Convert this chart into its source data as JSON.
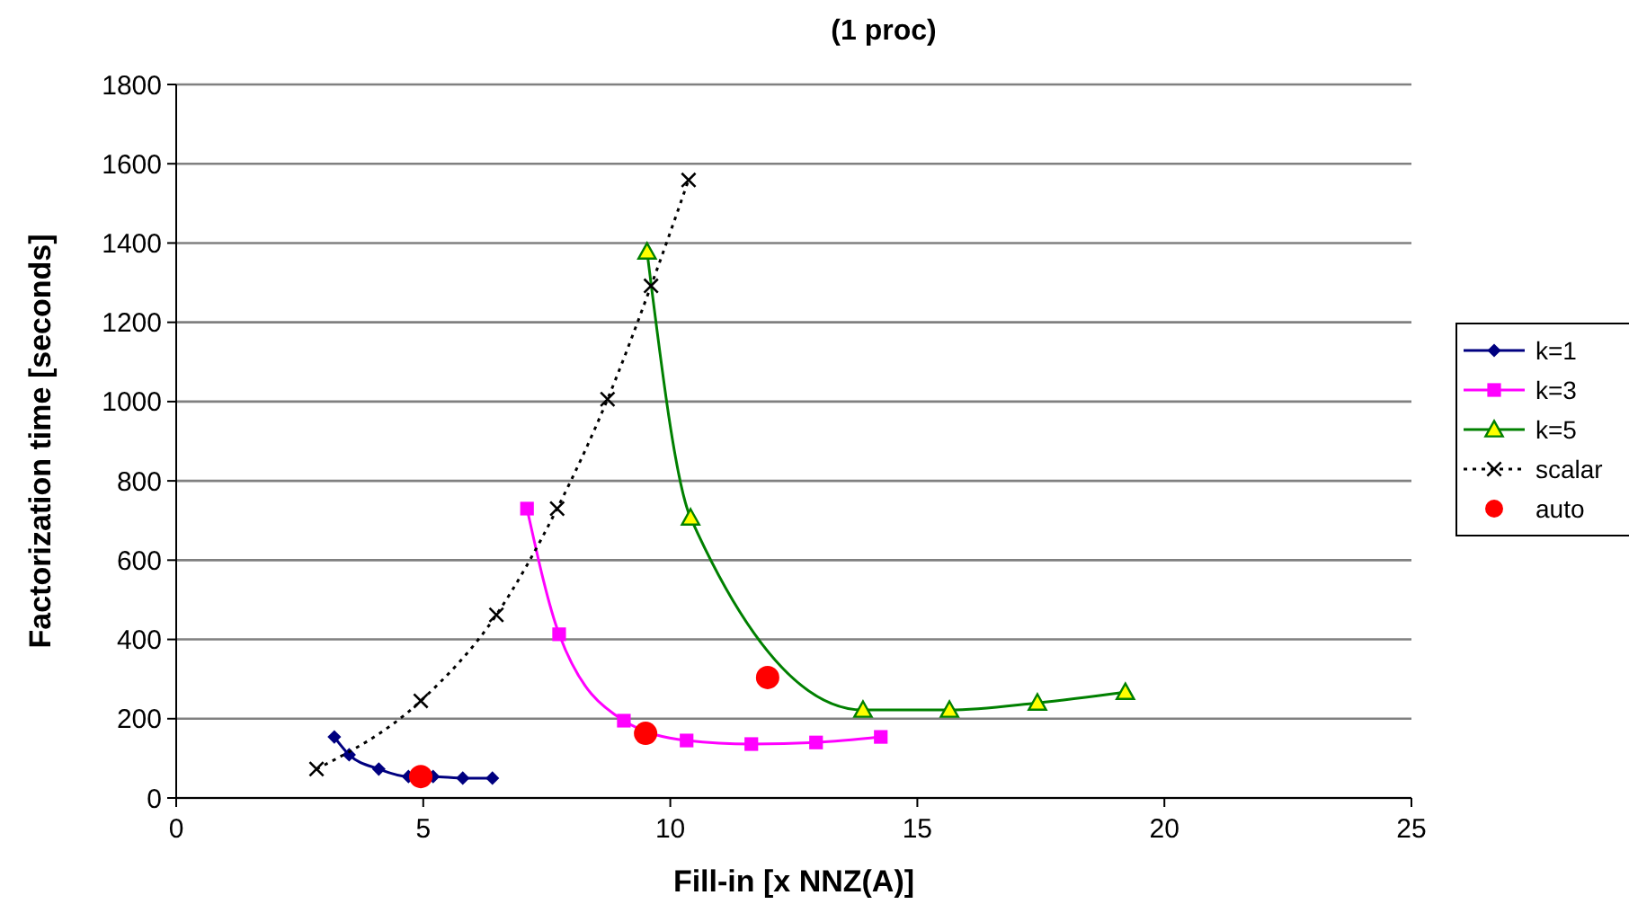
{
  "chart_data": {
    "type": "line",
    "title": "(1 proc)",
    "xlabel": "Fill-in [x NNZ(A)]",
    "ylabel": "Factorization time [seconds]",
    "xlim": [
      0,
      25
    ],
    "xticks": [
      0,
      5,
      10,
      15,
      20,
      25
    ],
    "ylim": [
      0,
      1800
    ],
    "yticks": [
      0,
      200,
      400,
      600,
      800,
      1000,
      1200,
      1400,
      1600,
      1800
    ],
    "grid": "y",
    "legend": "right",
    "series": [
      {
        "name": "k=1",
        "color": "#000080",
        "marker": "diamond",
        "line_style": "solid",
        "x": [
          3.2,
          3.5,
          4.1,
          4.7,
          5.2,
          5.8,
          6.4
        ],
        "values": [
          154,
          109,
          73,
          54,
          54,
          50,
          50
        ]
      },
      {
        "name": "k=3",
        "color": "#ff00ff",
        "marker": "square",
        "line_style": "solid",
        "x": [
          7.1,
          7.75,
          9.06,
          10.33,
          11.64,
          12.95,
          14.26
        ],
        "values": [
          730,
          413,
          195,
          145,
          136,
          140,
          154
        ]
      },
      {
        "name": "k=5",
        "color": "#008000",
        "marker": "triangle",
        "line_style": "solid",
        "x": [
          9.53,
          10.41,
          13.9,
          15.65,
          17.43,
          19.21
        ],
        "values": [
          1378,
          707,
          222,
          222,
          240,
          267
        ]
      },
      {
        "name": "scalar",
        "color": "#000000",
        "marker": "cross",
        "line_style": "dotted",
        "x": [
          2.84,
          4.95,
          6.48,
          7.71,
          8.73,
          9.61,
          10.37
        ],
        "values": [
          73,
          245,
          462,
          730,
          1006,
          1292,
          1559
        ]
      },
      {
        "name": "auto",
        "type": "scatter",
        "color": "#ff0000",
        "marker": "circle",
        "x": [
          4.95,
          9.5,
          11.97
        ],
        "values": [
          54,
          163,
          304
        ]
      }
    ]
  }
}
